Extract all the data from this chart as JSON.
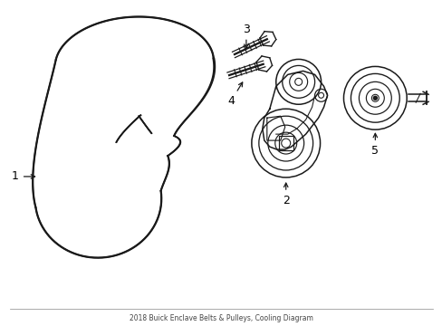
{
  "bg_color": "#ffffff",
  "line_color": "#1a1a1a",
  "lw": 1.1,
  "fig_width": 4.89,
  "fig_height": 3.6,
  "dpi": 100,
  "footer_text": "2018 Buick Enclave Belts & Pulleys, Cooling Diagram"
}
